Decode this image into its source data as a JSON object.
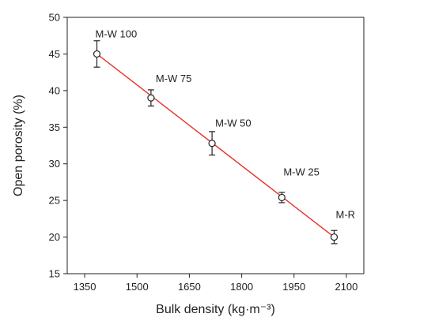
{
  "chart_data": {
    "type": "scatter",
    "title": "",
    "xlabel": "Bulk density (kg·m⁻³)",
    "ylabel": "Open porosity (%)",
    "xlim": [
      1300,
      2150
    ],
    "ylim": [
      15,
      50
    ],
    "xticks": [
      1350,
      1500,
      1650,
      1800,
      1950,
      2100
    ],
    "yticks": [
      15,
      20,
      25,
      30,
      35,
      40,
      45,
      50
    ],
    "grid": false,
    "legend": "none",
    "points": [
      {
        "label": "M-W 100",
        "x": 1385,
        "y": 45.0,
        "err": 1.8
      },
      {
        "label": "M-W 75",
        "x": 1540,
        "y": 39.0,
        "err": 1.1
      },
      {
        "label": "M-W 50",
        "x": 1715,
        "y": 32.8,
        "err": 1.6
      },
      {
        "label": "M-W 25",
        "x": 1915,
        "y": 25.4,
        "err": 0.7
      },
      {
        "label": "M-R",
        "x": 2065,
        "y": 20.0,
        "err": 0.9
      }
    ],
    "fit_line": {
      "x": [
        1385,
        2065
      ],
      "y": [
        45.0,
        20.0
      ],
      "color": "#e8302a"
    },
    "marker_color": "#222222"
  }
}
